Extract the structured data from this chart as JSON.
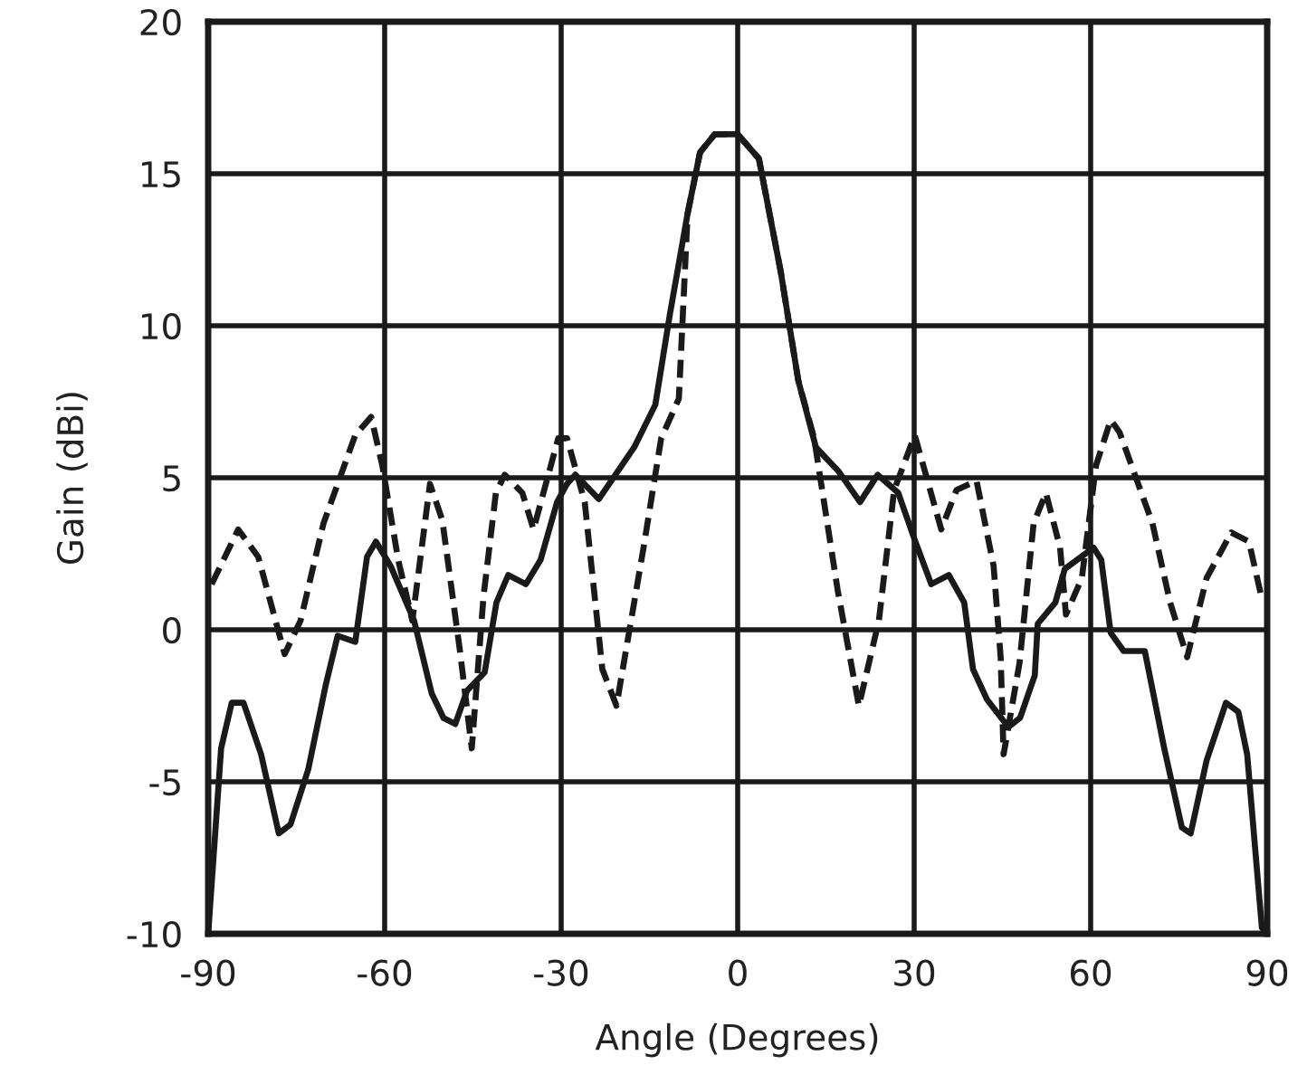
{
  "chart_data": {
    "type": "line",
    "xlabel": "Angle (Degrees)",
    "ylabel": "Gain (dBi)",
    "xlim": [
      -90,
      90
    ],
    "ylim": [
      -10,
      20
    ],
    "xticks": [
      -90,
      -60,
      -30,
      0,
      30,
      60,
      90
    ],
    "yticks": [
      -10,
      -5,
      0,
      5,
      10,
      15,
      20
    ],
    "grid": true,
    "marker": "none",
    "series": [
      {
        "color": "#1a1a1a",
        "line_style": "solid",
        "x": [
          -90,
          -87.8,
          -86,
          -84,
          -81,
          -78,
          -76,
          -73,
          -70,
          -68,
          -65,
          -63,
          -61.5,
          -59,
          -57,
          -55,
          -52,
          -50,
          -48,
          -46,
          -43,
          -41,
          -39,
          -36,
          -33.5,
          -30.7,
          -29,
          -27.6,
          -23.6,
          -17.6,
          -14,
          -11.5,
          -8.5,
          -6.4,
          -3.9,
          0,
          3.6,
          7.3,
          10.3,
          13.3,
          17.2,
          20.8,
          23.8,
          27.3,
          30.2,
          32.9,
          35.9,
          38.5,
          40,
          42.4,
          46,
          48,
          50.5,
          51,
          54,
          55.6,
          60.5,
          61.8,
          63.4,
          65.6,
          69.2,
          72.5,
          75.5,
          77,
          79.7,
          83,
          85.1,
          86.6,
          89.1,
          90
        ],
        "values": [
          -10,
          -3.9,
          -2.4,
          -2.4,
          -4.1,
          -6.7,
          -6.4,
          -4.6,
          -1.8,
          -0.2,
          -0.4,
          2.4,
          2.9,
          2.1,
          1.2,
          0.3,
          -2.1,
          -2.9,
          -3.1,
          -2.0,
          -1.4,
          0.9,
          1.8,
          1.5,
          2.3,
          4.2,
          4.8,
          5.1,
          4.3,
          6.0,
          7.4,
          10.4,
          13.7,
          15.7,
          16.3,
          16.3,
          15.5,
          11.8,
          8.2,
          6.0,
          5.2,
          4.2,
          5.1,
          4.5,
          2.9,
          1.5,
          1.8,
          0.9,
          -1.3,
          -2.3,
          -3.2,
          -2.9,
          -1.5,
          0.2,
          0.9,
          2.0,
          2.7,
          2.3,
          -0.1,
          -0.7,
          -0.7,
          -3.9,
          -6.5,
          -6.7,
          -4.3,
          -2.4,
          -2.7,
          -4.1,
          -9.8,
          -10
        ]
      },
      {
        "color": "#1a1a1a",
        "line_style": "dashed",
        "x": [
          -89.4,
          -84.9,
          -81.5,
          -77,
          -74.3,
          -70.4,
          -65,
          -62.3,
          -60.4,
          -57.7,
          -55.3,
          -52.3,
          -50.2,
          -47.2,
          -45.2,
          -43.2,
          -41.1,
          -39.6,
          -36.6,
          -34.7,
          -30.5,
          -29,
          -26,
          -23,
          -20.6,
          -16,
          -13,
          -10,
          -8.5,
          -6.4,
          -3.9,
          0,
          3.6,
          7.3,
          10.3,
          13,
          17,
          20.6,
          24,
          26.6,
          30.1,
          34.6,
          37.2,
          40.6,
          43.5,
          44.7,
          45.2,
          47.9,
          50.3,
          52.4,
          54.8,
          55.8,
          58.5,
          60.9,
          63.4,
          64.9,
          70.5,
          73.5,
          76.4,
          79.7,
          83.9,
          86.9,
          89
        ],
        "values": [
          1.5,
          3.3,
          2.4,
          -0.8,
          0.3,
          3.5,
          6.4,
          7.0,
          5.4,
          2.3,
          0.3,
          4.8,
          3.6,
          -0.7,
          -3.9,
          1.1,
          4.5,
          5.1,
          4.5,
          3.3,
          6.3,
          6.3,
          4.2,
          -1.3,
          -2.5,
          2.7,
          6.3,
          7.6,
          13.7,
          15.7,
          16.3,
          16.3,
          15.5,
          11.8,
          8.2,
          6.3,
          1.3,
          -2.5,
          0.3,
          4.6,
          6.4,
          3.3,
          4.6,
          4.9,
          2.1,
          -0.9,
          -4.1,
          -1.1,
          3.5,
          4.5,
          2.7,
          0.5,
          1.7,
          5.4,
          6.9,
          6.5,
          3.5,
          0.9,
          -0.9,
          1.7,
          3.2,
          2.9,
          1.1
        ]
      }
    ]
  }
}
